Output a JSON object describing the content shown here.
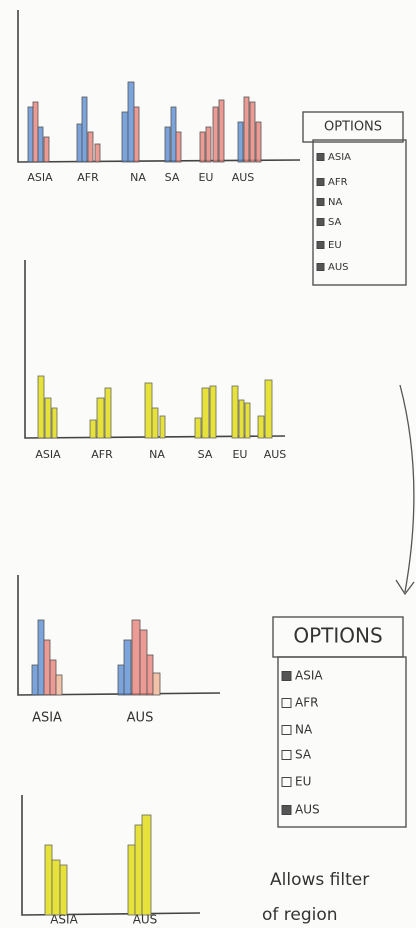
{
  "sketches": [
    {
      "labels": [
        "ASIA",
        "AFR",
        "NA",
        "SA",
        "EU",
        "AUS"
      ]
    },
    {
      "labels": [
        "ASIA",
        "AFR",
        "NA",
        "SA",
        "EU",
        "AUS"
      ]
    },
    {
      "labels": [
        "ASIA",
        "AUS"
      ]
    },
    {
      "labels": [
        "ASIA",
        "AUS"
      ]
    }
  ],
  "options_panels": [
    {
      "title": "OPTIONS",
      "items": [
        {
          "label": "ASIA",
          "checked": true
        },
        {
          "label": "AFR",
          "checked": true
        },
        {
          "label": "NA",
          "checked": true
        },
        {
          "label": "SA",
          "checked": true
        },
        {
          "label": "EU",
          "checked": true
        },
        {
          "label": "AUS",
          "checked": true
        }
      ]
    },
    {
      "title": "OPTIONS",
      "items": [
        {
          "label": "ASIA",
          "checked": true
        },
        {
          "label": "AFR",
          "checked": false
        },
        {
          "label": "NA",
          "checked": false
        },
        {
          "label": "SA",
          "checked": false
        },
        {
          "label": "EU",
          "checked": false
        },
        {
          "label": "AUS",
          "checked": true
        }
      ]
    }
  ],
  "note": [
    "Allows filter",
    "of region"
  ]
}
